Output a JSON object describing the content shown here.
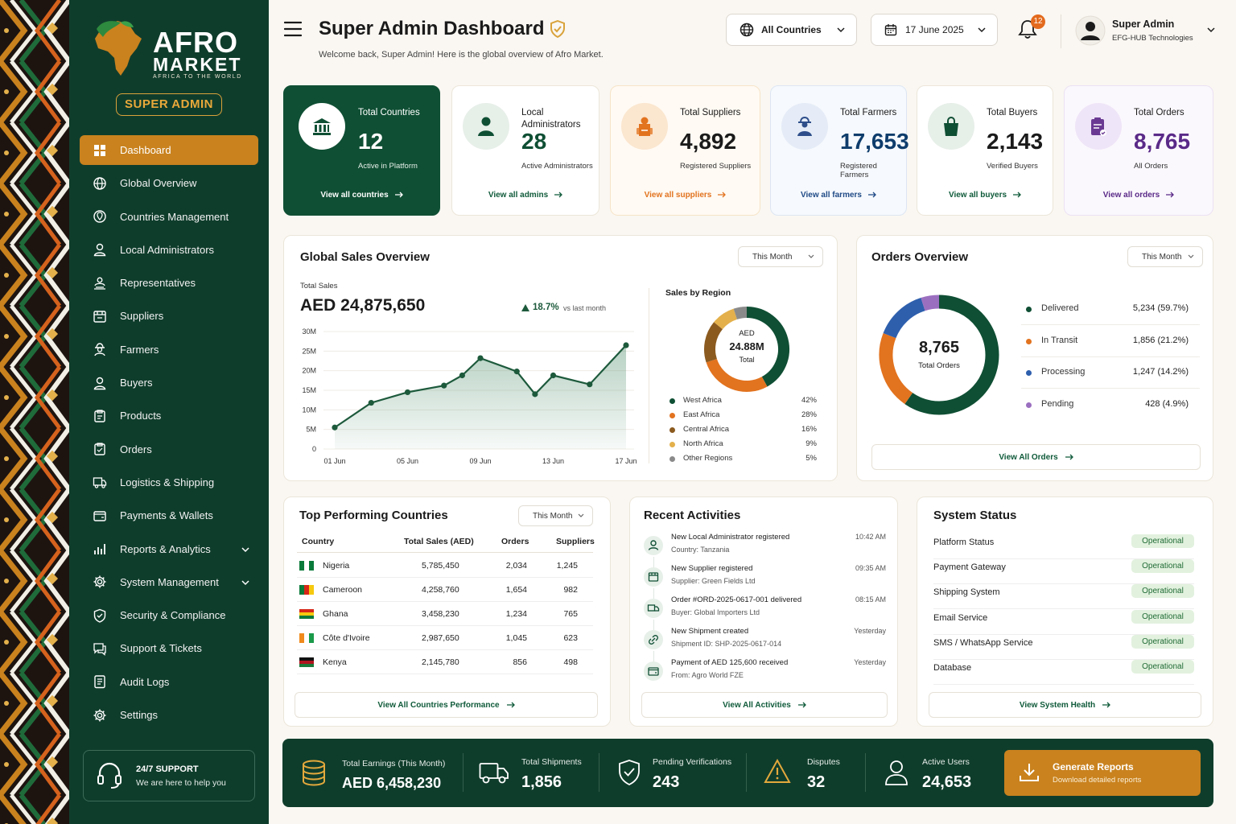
{
  "brand": {
    "name_line1": "AFRO",
    "name_line2": "MARKET",
    "tagline": "AFRICA TO THE WORLD",
    "role_badge": "SUPER ADMIN"
  },
  "colors": {
    "primary_green": "#0f3d2c",
    "accent_orange": "#c9821e",
    "status_green": "#1f6b34"
  },
  "sidebar": {
    "items": [
      {
        "label": "Dashboard",
        "icon": "grid-icon",
        "active": true
      },
      {
        "label": "Global Overview",
        "icon": "globe-icon"
      },
      {
        "label": "Countries Management",
        "icon": "map-pin-icon"
      },
      {
        "label": "Local Administrators",
        "icon": "user-icon"
      },
      {
        "label": "Representatives",
        "icon": "users-icon"
      },
      {
        "label": "Suppliers",
        "icon": "store-icon"
      },
      {
        "label": "Farmers",
        "icon": "farmer-icon"
      },
      {
        "label": "Buyers",
        "icon": "user-icon"
      },
      {
        "label": "Products",
        "icon": "box-icon"
      },
      {
        "label": "Orders",
        "icon": "clipboard-icon"
      },
      {
        "label": "Logistics & Shipping",
        "icon": "truck-icon"
      },
      {
        "label": "Payments & Wallets",
        "icon": "wallet-icon"
      },
      {
        "label": "Reports & Analytics",
        "icon": "bar-chart-icon",
        "expandable": true
      },
      {
        "label": "System Management",
        "icon": "gear-icon",
        "expandable": true
      },
      {
        "label": "Security & Compliance",
        "icon": "shield-icon"
      },
      {
        "label": "Support & Tickets",
        "icon": "chat-icon"
      },
      {
        "label": "Audit Logs",
        "icon": "document-icon"
      },
      {
        "label": "Settings",
        "icon": "gear-icon"
      }
    ],
    "support": {
      "title": "24/7 SUPPORT",
      "subtitle": "We are here to help you"
    }
  },
  "header": {
    "title": "Super Admin Dashboard",
    "subtitle": "Welcome back, Super Admin! Here is the global overview of Afro Market.",
    "country_filter": "All Countries",
    "date": "17 June 2025",
    "notifications": "12",
    "user": {
      "name": "Super Admin",
      "org": "EFG-HUB Technologies"
    }
  },
  "stats": [
    {
      "label": "Total Countries",
      "value": "12",
      "sub": "Active in Platform",
      "link": "View all countries"
    },
    {
      "label": "Local Administrators",
      "value": "28",
      "sub": "Active Administrators",
      "link": "View all admins"
    },
    {
      "label": "Total Suppliers",
      "value": "4,892",
      "sub": "Registered Suppliers",
      "link": "View all suppliers"
    },
    {
      "label": "Total Farmers",
      "value": "17,653",
      "sub": "Registered Farmers",
      "link": "View all farmers"
    },
    {
      "label": "Total Buyers",
      "value": "2,143",
      "sub": "Verified Buyers",
      "link": "View all buyers"
    },
    {
      "label": "Total Orders",
      "value": "8,765",
      "sub": "All Orders",
      "link": "View all orders"
    }
  ],
  "sales": {
    "title": "Global Sales Overview",
    "period": "This Month",
    "total_label": "Total Sales",
    "total_value": "AED 24,875,650",
    "change": "18.7%",
    "change_note": "vs last month",
    "region_title": "Sales by Region",
    "donut_center": [
      "AED",
      "24.88M",
      "Total"
    ]
  },
  "orders_overview": {
    "title": "Orders Overview",
    "period": "This Month",
    "center_value": "8,765",
    "center_label": "Total Orders",
    "legend": [
      {
        "label": "Delivered",
        "value": "5,234 (59.7%)"
      },
      {
        "label": "In Transit",
        "value": "1,856 (21.2%)"
      },
      {
        "label": "Processing",
        "value": "1,247 (14.2%)"
      },
      {
        "label": "Pending",
        "value": "428 (4.9%)"
      }
    ],
    "link": "View All Orders"
  },
  "chart_data": [
    {
      "type": "area",
      "title": "",
      "x": [
        "01 Jun",
        "03 Jun",
        "05 Jun",
        "07 Jun",
        "08 Jun",
        "09 Jun",
        "11 Jun",
        "12 Jun",
        "13 Jun",
        "15 Jun",
        "17 Jun"
      ],
      "y_values_millions": [
        5.5,
        11.8,
        14.5,
        16.2,
        18.8,
        23.2,
        19.8,
        14,
        18.8,
        16.5,
        26.5
      ],
      "x_ticks": [
        "01 Jun",
        "05 Jun",
        "09 Jun",
        "13 Jun",
        "17 Jun"
      ],
      "y_ticks": [
        "0",
        "5M",
        "10M",
        "15M",
        "20M",
        "25M",
        "30M"
      ],
      "ylim": [
        0,
        30
      ],
      "color": "#1d5a3c"
    },
    {
      "type": "pie",
      "title": "Sales by Region",
      "categories": [
        "West Africa",
        "East Africa",
        "Central Africa",
        "North Africa",
        "Other Regions"
      ],
      "values": [
        42,
        28,
        16,
        9,
        5
      ],
      "labels": [
        "42%",
        "28%",
        "16%",
        "9%",
        "5%"
      ],
      "colors": [
        "#0f4f34",
        "#e2731f",
        "#8b5a1f",
        "#e3b04b",
        "#8a8a8a"
      ]
    },
    {
      "type": "pie",
      "title": "Orders Overview",
      "categories": [
        "Delivered",
        "In Transit",
        "Processing",
        "Pending"
      ],
      "values": [
        59.7,
        21.2,
        14.2,
        4.9
      ],
      "colors": [
        "#0f4f34",
        "#e2731f",
        "#2e5fad",
        "#9b6fc0"
      ]
    }
  ],
  "top_countries": {
    "title": "Top Performing Countries",
    "period": "This Month",
    "columns": [
      "Country",
      "Total Sales (AED)",
      "Orders",
      "Suppliers"
    ],
    "rows": [
      {
        "country": "Nigeria",
        "sales": "5,785,450",
        "orders": "2,034",
        "suppliers": "1,245"
      },
      {
        "country": "Cameroon",
        "sales": "4,258,760",
        "orders": "1,654",
        "suppliers": "982"
      },
      {
        "country": "Ghana",
        "sales": "3,458,230",
        "orders": "1,234",
        "suppliers": "765"
      },
      {
        "country": "Côte d'Ivoire",
        "sales": "2,987,650",
        "orders": "1,045",
        "suppliers": "623"
      },
      {
        "country": "Kenya",
        "sales": "2,145,780",
        "orders": "856",
        "suppliers": "498"
      }
    ],
    "link": "View All Countries Performance"
  },
  "activities": {
    "title": "Recent Activities",
    "items": [
      {
        "title": "New Local Administrator registered",
        "detail": "Country: Tanzania",
        "time": "10:42 AM"
      },
      {
        "title": "New Supplier registered",
        "detail": "Supplier: Green Fields Ltd",
        "time": "09:35 AM"
      },
      {
        "title": "Order #ORD-2025-0617-001 delivered",
        "detail": "Buyer: Global Importers Ltd",
        "time": "08:15 AM"
      },
      {
        "title": "New Shipment created",
        "detail": "Shipment ID: SHP-2025-0617-014",
        "time": "Yesterday"
      },
      {
        "title": "Payment of AED 125,600 received",
        "detail": "From: Agro World FZE",
        "time": "Yesterday"
      }
    ],
    "link": "View All Activities"
  },
  "system_status": {
    "title": "System Status",
    "items": [
      {
        "label": "Platform Status",
        "status": "Operational"
      },
      {
        "label": "Payment Gateway",
        "status": "Operational"
      },
      {
        "label": "Shipping System",
        "status": "Operational"
      },
      {
        "label": "Email Service",
        "status": "Operational"
      },
      {
        "label": "SMS / WhatsApp Service",
        "status": "Operational"
      },
      {
        "label": "Database",
        "status": "Operational"
      }
    ],
    "link": "View System Health"
  },
  "bottom_bar": {
    "earnings_label": "Total Earnings (This Month)",
    "earnings_value": "AED 6,458,230",
    "shipments_label": "Total Shipments",
    "shipments_value": "1,856",
    "pending_label": "Pending Verifications",
    "pending_value": "243",
    "disputes_label": "Disputes",
    "disputes_value": "32",
    "users_label": "Active Users",
    "users_value": "24,653",
    "generate_title": "Generate Reports",
    "generate_sub": "Download detailed reports"
  }
}
